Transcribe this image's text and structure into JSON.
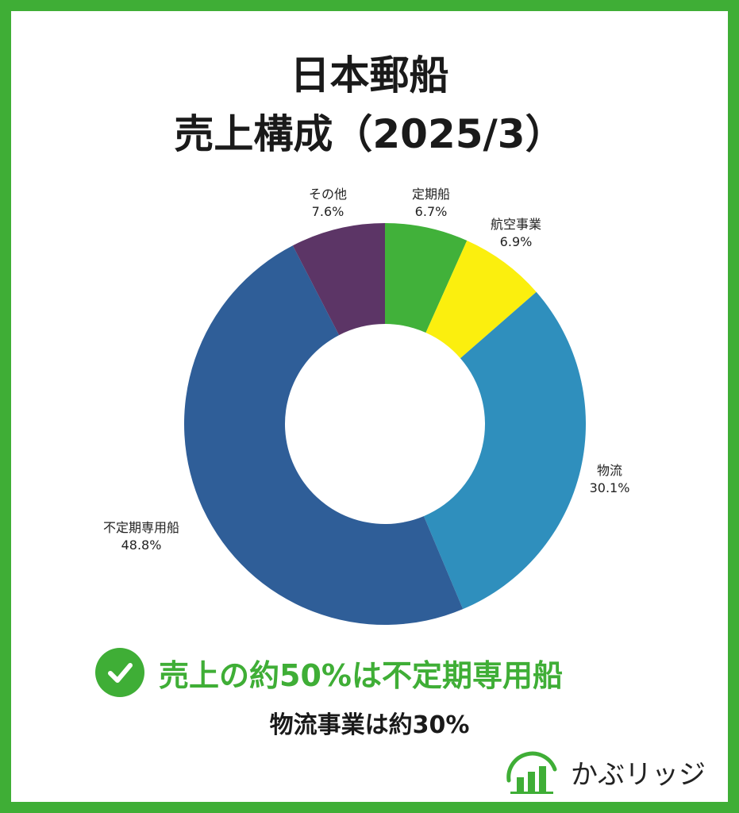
{
  "title": {
    "line1": "日本郵船",
    "line2": "売上構成（2025/3）"
  },
  "chart_data": {
    "type": "pie",
    "style": "donut",
    "categories": [
      "定期船",
      "航空事業",
      "物流",
      "不定期専用船",
      "その他"
    ],
    "values": [
      6.7,
      6.9,
      30.1,
      48.8,
      7.6
    ],
    "value_labels": [
      "6.7%",
      "6.9%",
      "30.1%",
      "48.8%",
      "7.6%"
    ],
    "colors": [
      "#41b13a",
      "#fbef0e",
      "#2f8fbd",
      "#2f5e98",
      "#5c3566"
    ],
    "start_angle": "12 o'clock",
    "direction": "clockwise"
  },
  "highlight": {
    "icon": "check-circle-icon",
    "text": "売上の約50%は不定期専用船"
  },
  "subtext": "物流事業は約30%",
  "brand": {
    "name": "かぶリッジ",
    "logo_icon": "rising-bars-logo-icon"
  },
  "colors": {
    "frame": "#3fae36",
    "accent": "#3fae36",
    "text": "#1a1a1a"
  }
}
